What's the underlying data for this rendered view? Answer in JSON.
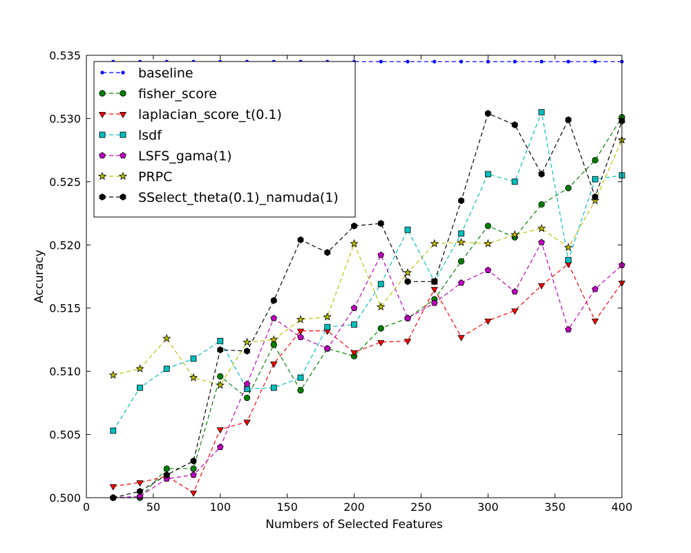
{
  "chart_data": {
    "type": "line",
    "title": "",
    "xlabel": "Numbers of Selected Features",
    "ylabel": "Accuracy",
    "xlim": [
      0,
      400
    ],
    "ylim": [
      0.5,
      0.535
    ],
    "xticks": [
      0,
      50,
      100,
      150,
      200,
      250,
      300,
      350,
      400
    ],
    "yticks": [
      0.5,
      0.505,
      0.51,
      0.515,
      0.52,
      0.525,
      0.53,
      0.535
    ],
    "ytick_labels": [
      "0.500",
      "0.505",
      "0.510",
      "0.515",
      "0.520",
      "0.525",
      "0.530",
      "0.535"
    ],
    "grid": false,
    "legend_position": "upper-left",
    "x": [
      20,
      40,
      60,
      80,
      100,
      120,
      140,
      160,
      180,
      200,
      220,
      240,
      260,
      280,
      300,
      320,
      340,
      360,
      380,
      400
    ],
    "series": [
      {
        "name": "baseline",
        "color": "#0000ff",
        "marker": "point",
        "values": [
          0.5345,
          0.5345,
          0.5345,
          0.5345,
          0.5345,
          0.5345,
          0.5345,
          0.5345,
          0.5345,
          0.5345,
          0.5345,
          0.5345,
          0.5345,
          0.5345,
          0.5345,
          0.5345,
          0.5345,
          0.5345,
          0.5345,
          0.5345
        ]
      },
      {
        "name": "fisher_score",
        "color": "#008000",
        "marker": "circle",
        "values": [
          0.5,
          0.5,
          0.5023,
          0.5023,
          0.5096,
          0.5079,
          0.5121,
          0.5085,
          0.5118,
          0.5112,
          0.5134,
          0.5142,
          0.5157,
          0.5187,
          0.5215,
          0.5206,
          0.5232,
          0.5245,
          0.5267,
          0.5301
        ]
      },
      {
        "name": "laplacian_score_t(0.1)",
        "color": "#ff0000",
        "marker": "triangle-down",
        "values": [
          0.5009,
          0.5012,
          0.5017,
          0.5004,
          0.5054,
          0.506,
          0.5106,
          0.5132,
          0.5132,
          0.5115,
          0.5123,
          0.5124,
          0.5165,
          0.5127,
          0.514,
          0.5148,
          0.5168,
          0.5185,
          0.514,
          0.517
        ]
      },
      {
        "name": "lsdf",
        "color": "#00bfbf",
        "marker": "square",
        "values": [
          0.5053,
          0.5087,
          0.5102,
          0.511,
          0.5124,
          0.5086,
          0.5087,
          0.5095,
          0.5135,
          0.5137,
          0.5169,
          0.5212,
          0.5171,
          0.5209,
          0.5256,
          0.525,
          0.5305,
          0.5188,
          0.5252,
          0.5255
        ]
      },
      {
        "name": "LSFS_gama(1)",
        "color": "#bf00bf",
        "marker": "pentagon",
        "values": [
          0.5,
          0.5001,
          0.5015,
          0.5018,
          0.504,
          0.509,
          0.5142,
          0.5127,
          0.5118,
          0.515,
          0.5192,
          0.5142,
          0.5154,
          0.517,
          0.518,
          0.5163,
          0.5202,
          0.5133,
          0.5165,
          0.5184
        ]
      },
      {
        "name": "PRPC",
        "color": "#bfbf00",
        "marker": "star",
        "values": [
          0.5097,
          0.5102,
          0.5126,
          0.5095,
          0.5089,
          0.5123,
          0.5125,
          0.5141,
          0.5143,
          0.5201,
          0.5151,
          0.5178,
          0.5201,
          0.5202,
          0.5201,
          0.5208,
          0.5213,
          0.5198,
          0.5235,
          0.5283
        ]
      },
      {
        "name": "SSelect_theta(0.1)_namuda(1)",
        "color": "#000000",
        "marker": "hexagon",
        "values": [
          0.5,
          0.5005,
          0.5018,
          0.5029,
          0.5117,
          0.5116,
          0.5156,
          0.5204,
          0.5194,
          0.5215,
          0.5217,
          0.5171,
          0.5171,
          0.5235,
          0.5304,
          0.5295,
          0.5256,
          0.5299,
          0.5238,
          0.5298
        ]
      }
    ]
  }
}
